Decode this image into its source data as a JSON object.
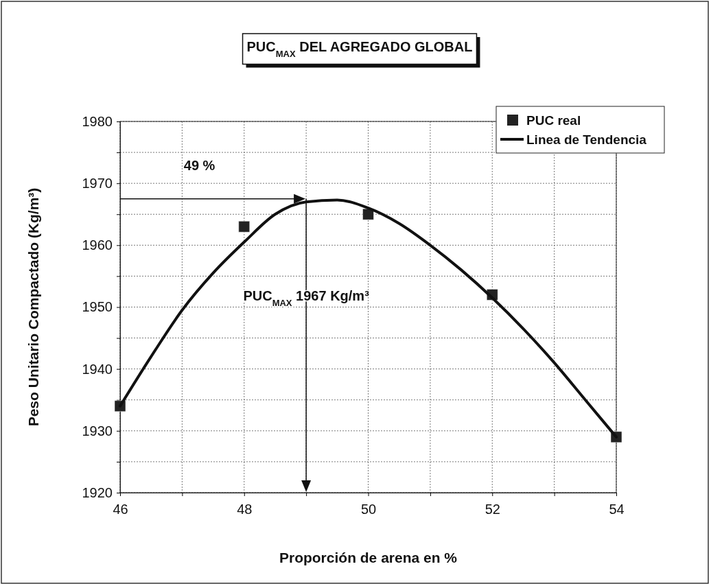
{
  "chart_data": {
    "type": "scatter",
    "title": "PUC$_{MAX}$ DEL AGREGADO GLOBAL",
    "xlabel": "Proporción de arena en %",
    "ylabel": "Peso Unitario Compactado (Kg/m³)",
    "xlim": [
      46,
      54
    ],
    "xticks": [
      46,
      {
        "value": 47,
        "label": null
      },
      48,
      {
        "value": 49,
        "label": null
      },
      50,
      {
        "value": 51,
        "label": null
      },
      52,
      {
        "value": 53,
        "label": null
      },
      54
    ],
    "ylim": [
      1920,
      1980
    ],
    "yticks": [
      1920,
      {
        "value": 1925,
        "label": null
      },
      1930,
      {
        "value": 1935,
        "label": null
      },
      1940,
      {
        "value": 1945,
        "label": null
      },
      1950,
      {
        "value": 1955,
        "label": null
      },
      1960,
      {
        "value": 1965,
        "label": null
      },
      1970,
      {
        "value": 1975,
        "label": null
      },
      1980
    ],
    "grid": true,
    "legend": "top right",
    "series": [
      {
        "name": "PUC real",
        "marker": "square",
        "color": "#222222",
        "x": [
          46,
          48,
          50,
          52,
          54
        ],
        "values": [
          1934,
          1963,
          1965,
          1952,
          1929
        ]
      },
      {
        "name": "Linea de Tendencia",
        "type": "line",
        "marker": "none",
        "line_style": "solid",
        "color": "#111111",
        "x": [
          46,
          46.5,
          47,
          47.5,
          48,
          48.5,
          49,
          49.5,
          50,
          50.5,
          51,
          51.5,
          52,
          52.5,
          53,
          53.5,
          54
        ],
        "values": [
          1934,
          1942,
          1949.5,
          1955.5,
          1960.5,
          1965,
          1967,
          1967.3,
          1966,
          1963.5,
          1960,
          1956,
          1951.5,
          1946.5,
          1941,
          1935,
          1929
        ]
      }
    ],
    "ref_lines": [
      {
        "axis": "x",
        "value": 49,
        "color": "#111111"
      },
      {
        "axis": "y",
        "value": 1967.5,
        "color": "#111111"
      }
    ],
    "annotations": [
      "49 %",
      {
        "text": "PUC$_{MAX}$ 1967 Kg/m³",
        "x": 49,
        "y": 1951
      }
    ]
  }
}
